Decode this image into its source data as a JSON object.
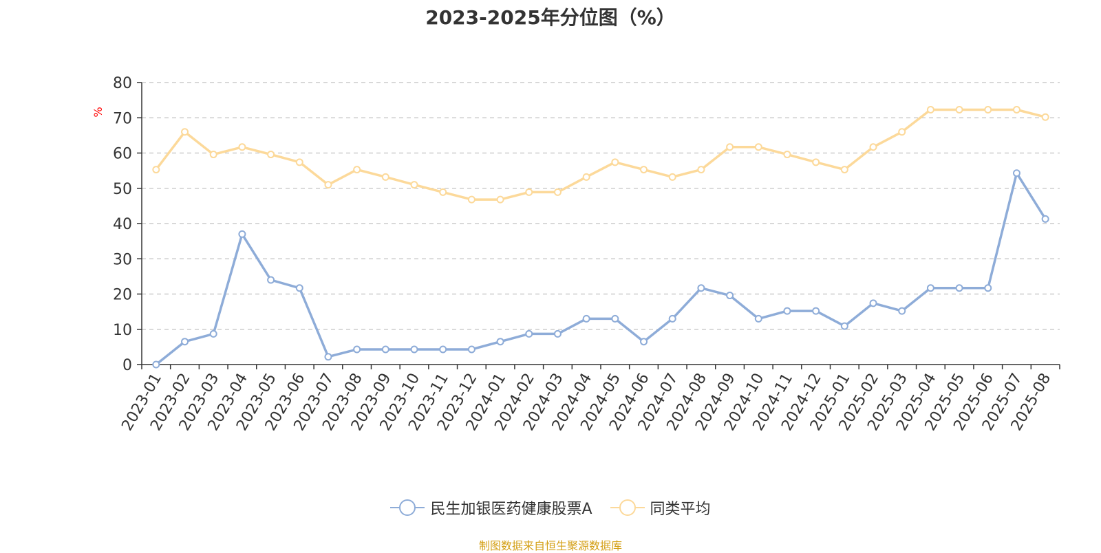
{
  "chart_data": {
    "type": "line",
    "title": "2023-2025年分位图（%）",
    "ylabel": "%",
    "ylim": [
      0,
      80
    ],
    "yticks": [
      0,
      10,
      20,
      30,
      40,
      50,
      60,
      70,
      80
    ],
    "grid": true,
    "legend_position": "bottom",
    "categories": [
      "2023-01",
      "2023-02",
      "2023-03",
      "2023-04",
      "2023-05",
      "2023-06",
      "2023-07",
      "2023-08",
      "2023-09",
      "2023-10",
      "2023-11",
      "2023-12",
      "2024-01",
      "2024-02",
      "2024-03",
      "2024-04",
      "2024-05",
      "2024-06",
      "2024-07",
      "2024-08",
      "2024-09",
      "2024-10",
      "2024-11",
      "2024-12",
      "2025-01",
      "2025-02",
      "2025-03",
      "2025-04",
      "2025-05",
      "2025-06",
      "2025-07",
      "2025-08"
    ],
    "series": [
      {
        "name": "民生加银医药健康股票A",
        "color": "#8eacd8",
        "values": [
          0,
          6.5,
          8.7,
          37,
          24,
          21.7,
          2.2,
          4.3,
          4.3,
          4.3,
          4.3,
          4.3,
          6.5,
          8.7,
          8.7,
          13,
          13,
          6.5,
          13,
          21.7,
          19.6,
          13,
          15.2,
          15.2,
          10.9,
          17.4,
          15.2,
          21.7,
          21.7,
          21.7,
          54.3,
          41.3
        ]
      },
      {
        "name": "同类平均",
        "color": "#fcd99a",
        "values": [
          55.3,
          66,
          59.6,
          61.7,
          59.6,
          57.4,
          51,
          55.3,
          53.2,
          51,
          48.9,
          46.8,
          46.8,
          48.9,
          48.9,
          53.2,
          57.4,
          55.3,
          53.2,
          55.3,
          61.7,
          61.7,
          59.6,
          57.4,
          55.3,
          61.7,
          66,
          72.3,
          72.3,
          72.3,
          72.3,
          70.2
        ]
      }
    ]
  },
  "source_note": "制图数据来自恒生聚源数据库"
}
